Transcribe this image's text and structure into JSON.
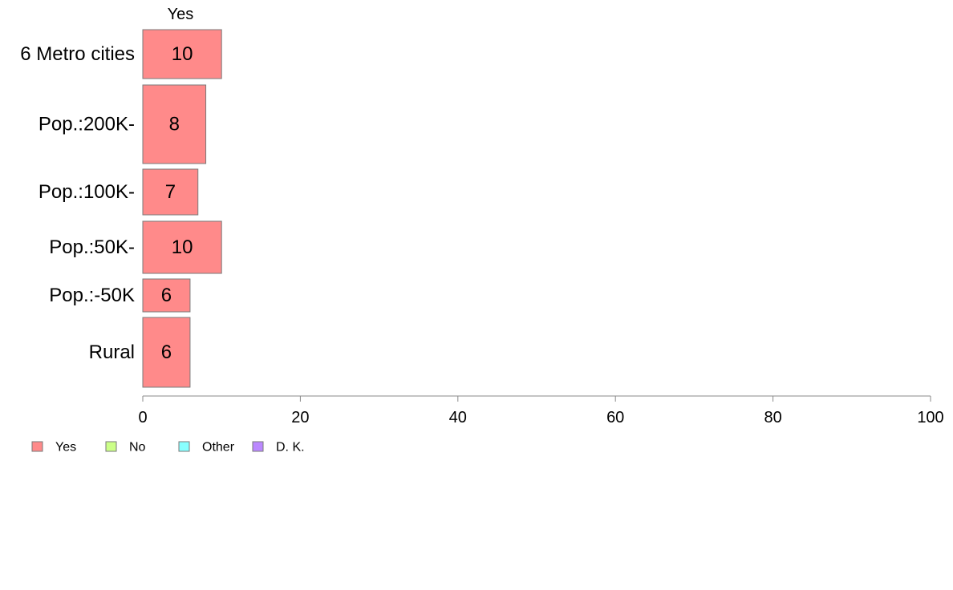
{
  "chart_data": {
    "type": "bar",
    "orientation": "horizontal",
    "stacked": true,
    "column_header": "Yes",
    "categories": [
      "6 Metro cities",
      "Pop.:200K-",
      "Pop.:100K-",
      "Pop.:50K-",
      "Pop.:-50K",
      "Rural"
    ],
    "series": [
      {
        "name": "Yes",
        "values": [
          10,
          8,
          7,
          10,
          6,
          6
        ],
        "color": "#ff8a8a"
      }
    ],
    "xlim": [
      0,
      100
    ],
    "xticks": [
      0,
      20,
      40,
      60,
      80,
      100
    ],
    "grid": false,
    "legend": {
      "placement": "bottom-left",
      "entries": [
        {
          "label": "Yes",
          "color": "#ff8a8a"
        },
        {
          "label": "No",
          "color": "#ccff88"
        },
        {
          "label": "Other",
          "color": "#88ffff"
        },
        {
          "label": "D. K.",
          "color": "#bb88ff"
        }
      ]
    }
  }
}
